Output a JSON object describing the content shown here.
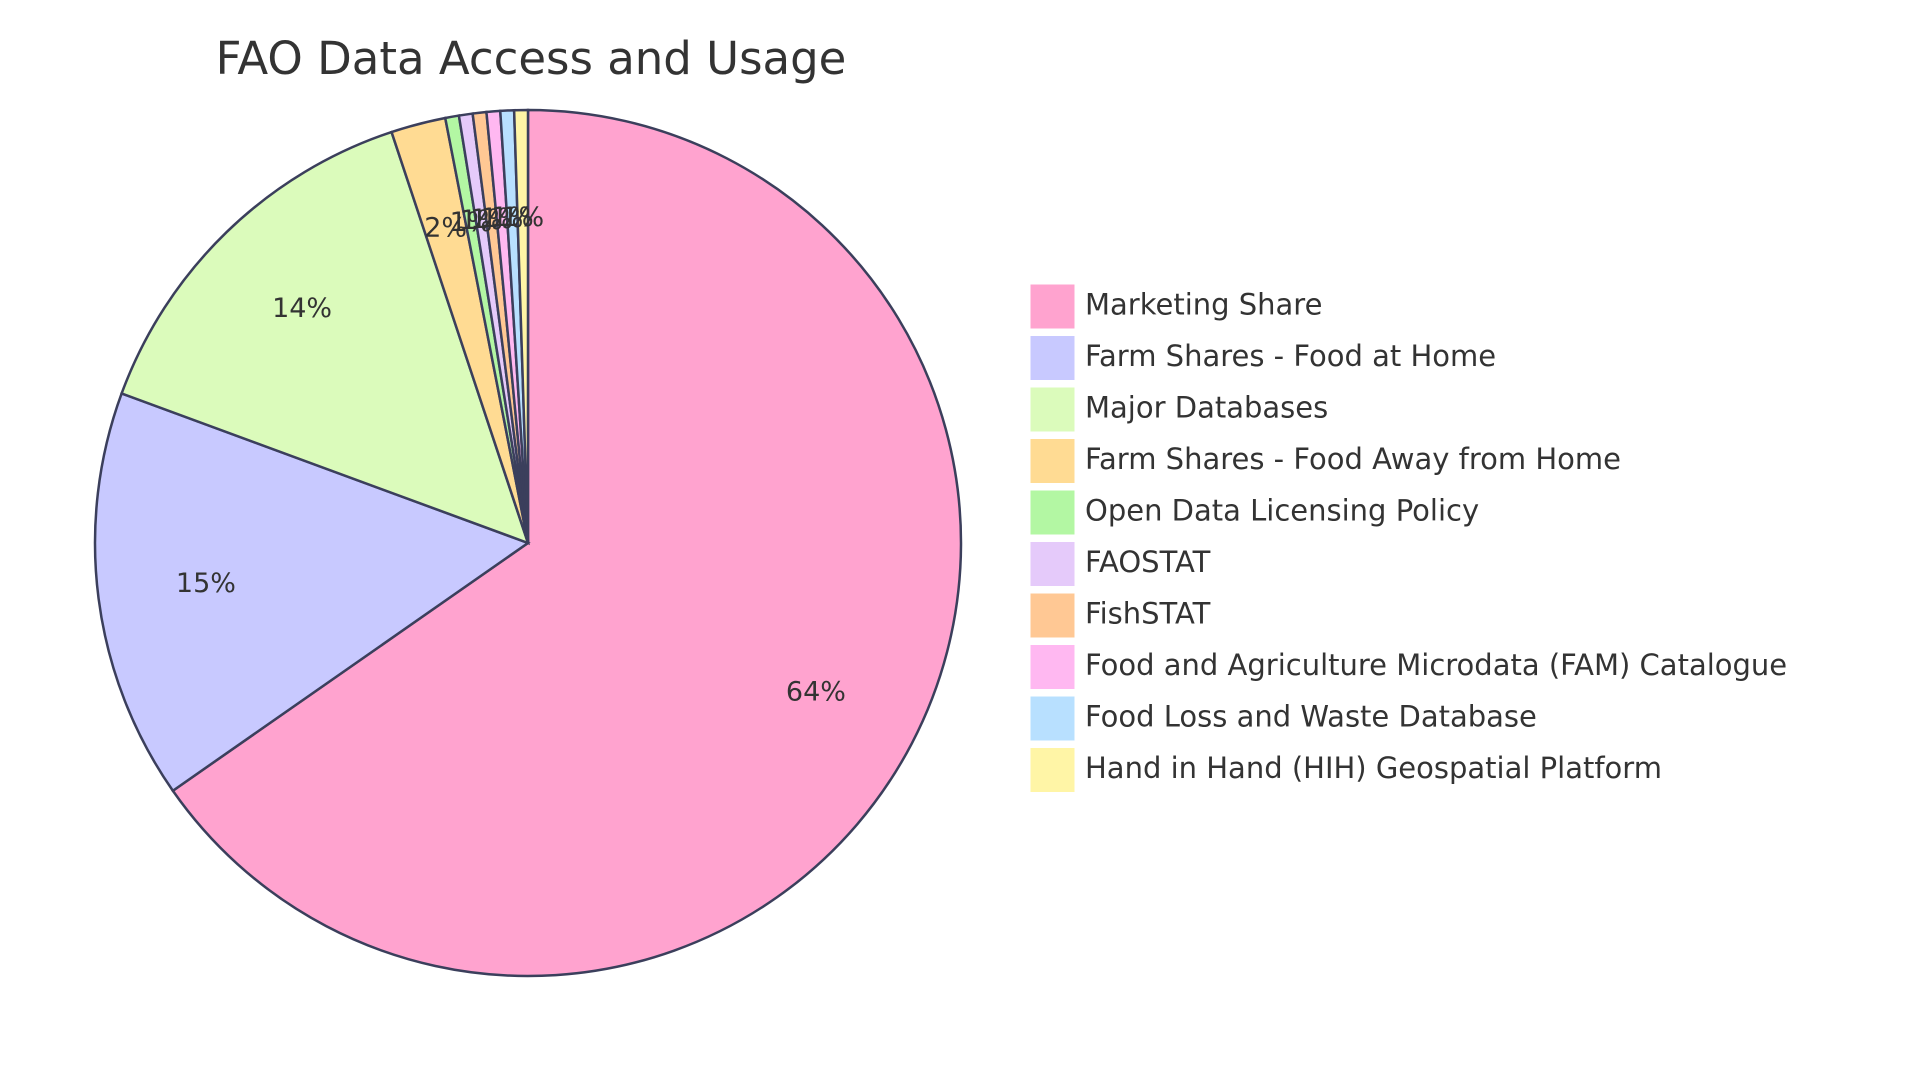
{
  "chart_data": {
    "type": "pie",
    "title": "FAO Data Access and Usage",
    "labels_format": "percent",
    "legend_position": "right",
    "slices": [
      {
        "label": "Marketing Share",
        "value": 64,
        "percent_label": "64%",
        "color": "#ffa3cf"
      },
      {
        "label": "Farm Shares - Food at Home",
        "value": 15,
        "percent_label": "15%",
        "color": "#c8c9ff"
      },
      {
        "label": "Major Databases",
        "value": 14,
        "percent_label": "14%",
        "color": "#dbfbbb"
      },
      {
        "label": "Farm Shares - Food Away from Home",
        "value": 2,
        "percent_label": "2%",
        "color": "#ffdb93"
      },
      {
        "label": "Open Data Licensing Policy",
        "value": 0.5,
        "percent_label": "1%",
        "color": "#b3f7a3"
      },
      {
        "label": "FAOSTAT",
        "value": 0.5,
        "percent_label": "1%",
        "color": "#e5cafa"
      },
      {
        "label": "FishSTAT",
        "value": 0.5,
        "percent_label": "1%",
        "color": "#ffc894"
      },
      {
        "label": "Food and Agriculture Microdata (FAM) Catalogue",
        "value": 0.5,
        "percent_label": "1%",
        "color": "#ffb8f1"
      },
      {
        "label": "Food Loss and Waste Database",
        "value": 0.5,
        "percent_label": "1%",
        "color": "#b8e0ff"
      },
      {
        "label": "Hand in Hand (HIH) Geospatial Platform",
        "value": 0.5,
        "percent_label": "1%",
        "color": "#fff5a6"
      }
    ]
  }
}
